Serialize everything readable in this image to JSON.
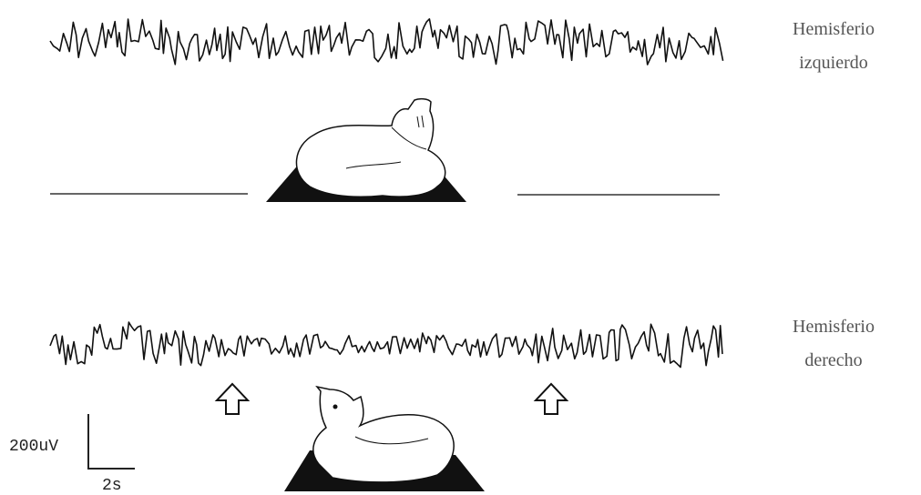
{
  "traces": [
    {
      "label_lines": [
        "Hemisferio",
        "izquierdo"
      ]
    },
    {
      "label_lines": [
        "Hemisferio",
        "derecho"
      ]
    }
  ],
  "scale_bar": {
    "amplitude": "200uV",
    "time": "2s"
  }
}
